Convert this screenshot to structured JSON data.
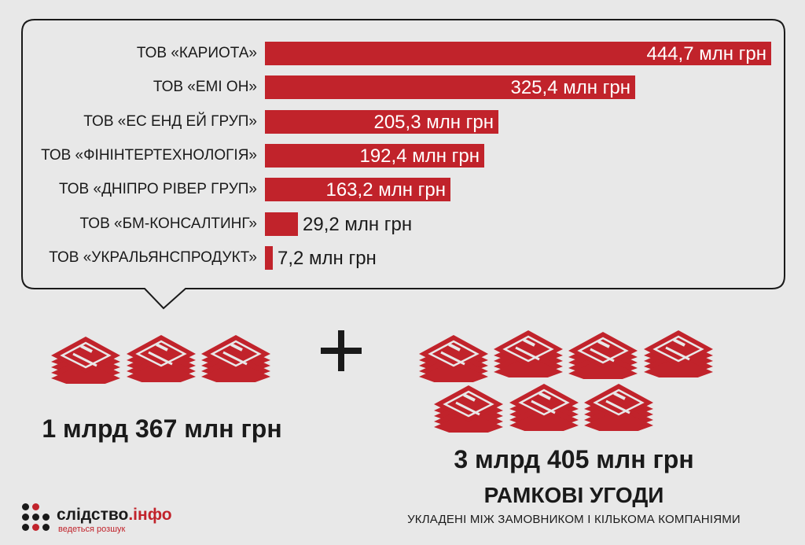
{
  "chart_data": {
    "type": "bar",
    "orientation": "horizontal",
    "categories": [
      "ТОВ «КАРИОТА»",
      "ТОВ «ЕМІ ОН»",
      "ТОВ «ЕС ЕНД ЕЙ ГРУП»",
      "ТОВ «ФІНІНТЕРТЕХНОЛОГІЯ»",
      "ТОВ «ДНІПРО РІВЕР ГРУП»",
      "ТОВ «БМ-КОНСАЛТИНГ»",
      "ТОВ «УКРАЛЬЯНСПРОДУКТ»"
    ],
    "values": [
      444.7,
      325.4,
      205.3,
      192.4,
      163.2,
      29.2,
      7.2
    ],
    "value_labels": [
      "444,7 млн грн",
      "325,4 млн грн",
      "205,3 млн грн",
      "192,4 млн грн",
      "163,2 млн грн",
      "29,2 млн грн",
      "7,2 млн грн"
    ],
    "bar_color": "#c1232b"
  },
  "totals": {
    "direct": "1 млрд 367 млн грн",
    "framework": "3 млрд 405 млн грн"
  },
  "framework": {
    "title": "РАМКОВІ УГОДИ",
    "subtitle": "УКЛАДЕНІ МІЖ ЗАМОВНИКОМ І КІЛЬКОМА КОМПАНІЯМИ"
  },
  "logo": {
    "name_main": "слідство",
    "name_suffix": ".інфо",
    "tagline": "ведеться розшук"
  },
  "icons": {
    "money": "money-stack-icon",
    "plus": "plus-icon",
    "logo": "dot-grid-logo"
  },
  "colors": {
    "accent": "#c1232b",
    "background": "#e8e8e8",
    "text": "#1a1a1a"
  }
}
